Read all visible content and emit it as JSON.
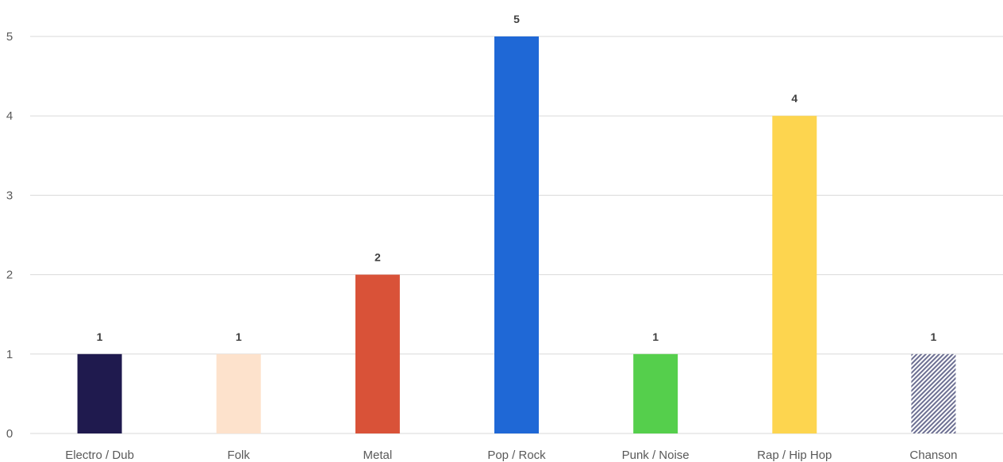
{
  "chart_data": {
    "type": "bar",
    "categories": [
      "Electro / Dub",
      "Folk",
      "Metal",
      "Pop / Rock",
      "Punk / Noise",
      "Rap / Hip Hop",
      "Chanson"
    ],
    "values": [
      1,
      1,
      2,
      5,
      1,
      4,
      1
    ],
    "colors": [
      "#1f1a4e",
      "#fde2cc",
      "#d95238",
      "#1f68d6",
      "#55cf4c",
      "#fdd54f",
      "#8c8fb0"
    ],
    "patterns": [
      "solid",
      "solid",
      "solid",
      "solid",
      "solid",
      "solid",
      "diagonal-hatch"
    ],
    "ylim": [
      0,
      5
    ],
    "yticks": [
      "0",
      "1",
      "2",
      "3",
      "4",
      "5"
    ],
    "data_labels": [
      "1",
      "1",
      "2",
      "5",
      "1",
      "4",
      "1"
    ],
    "grid": true,
    "legend": "none"
  }
}
